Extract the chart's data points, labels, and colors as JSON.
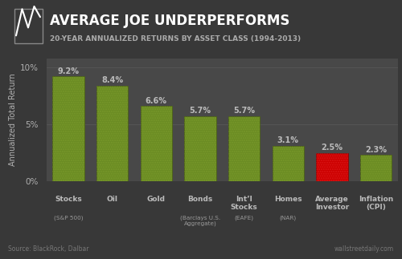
{
  "title": "AVERAGE JOE UNDERPERFORMS",
  "subtitle": "20-YEAR ANNUALIZED RETURNS BY ASSET CLASS (1994-2013)",
  "categories": [
    "Stocks",
    "Oil",
    "Gold",
    "Bonds",
    "Int’l\nStocks",
    "Homes",
    "Average\nInvestor",
    "Inflation\n(CPI)"
  ],
  "sublabels": [
    "(S&P 500)",
    "",
    "",
    "(Barclays U.S.\nAggregate)",
    "(EAFE)",
    "(NAR)",
    "",
    ""
  ],
  "values": [
    9.2,
    8.4,
    6.6,
    5.7,
    5.7,
    3.1,
    2.5,
    2.3
  ],
  "bar_colors": [
    "green",
    "green",
    "green",
    "green",
    "green",
    "green",
    "red",
    "green"
  ],
  "value_labels": [
    "9.2%",
    "8.4%",
    "6.6%",
    "5.7%",
    "5.7%",
    "3.1%",
    "2.5%",
    "2.3%"
  ],
  "ylabel": "Annualized Total Return",
  "ylim": [
    0,
    10.8
  ],
  "yticks": [
    0,
    5,
    10
  ],
  "ytick_labels": [
    "0%",
    "5%",
    "10%"
  ],
  "background_color": "#383838",
  "plot_bg_color": "#484848",
  "title_bg_color": "#111111",
  "bar_green": "#6b8c23",
  "bar_red": "#cc0000",
  "source_text": "Source: BlackRock, Dalbar",
  "credit_text": "wallstreetdaily.com",
  "grid_color": "#5a5a5a",
  "text_color": "#b0b0b0",
  "title_color": "#ffffff",
  "subtitle_color": "#aaaaaa"
}
